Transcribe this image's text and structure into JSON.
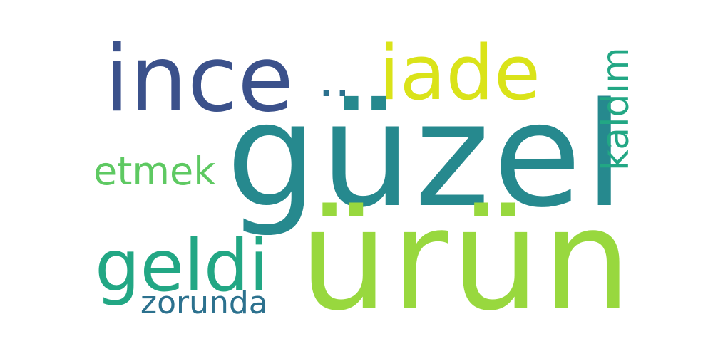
{
  "word_cloud": {
    "words": [
      {
        "text": "güzel",
        "color": "#26898e"
      },
      {
        "text": "ürün",
        "color": "#98d83e"
      },
      {
        "text": "ince",
        "color": "#3b518b"
      },
      {
        "text": "..",
        "color": "#2c718e"
      },
      {
        "text": "iade",
        "color": "#dae319"
      },
      {
        "text": "etmek",
        "color": "#5ec962"
      },
      {
        "text": "geldi",
        "color": "#22a784"
      },
      {
        "text": "zorunda",
        "color": "#2c718e"
      },
      {
        "text": "kaldım",
        "color": "#22a784"
      }
    ]
  }
}
